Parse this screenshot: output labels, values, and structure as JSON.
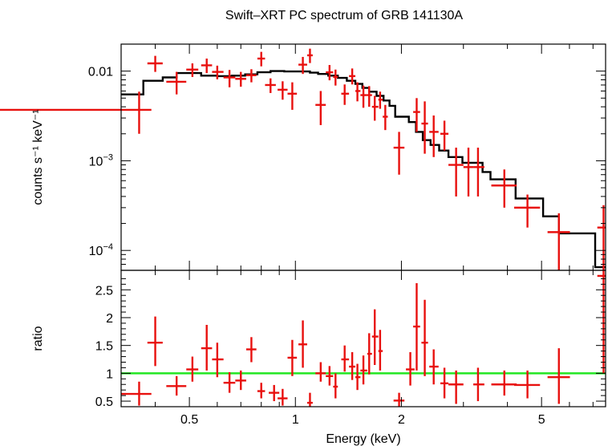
{
  "chart_data": [
    {
      "type": "scatter",
      "title": "Swift–XRT PC spectrum of GRB 141130A",
      "ylabel": "counts s⁻¹ keV⁻¹",
      "xscale": "log",
      "yscale": "log",
      "xlim": [
        0.32,
        7.6
      ],
      "ylim": [
        6e-05,
        0.02
      ],
      "yticks": [
        {
          "value": 0.01,
          "label": "0.01"
        },
        {
          "value": 0.001,
          "label": "10",
          "exp": "−3"
        },
        {
          "value": 0.0001,
          "label": "10",
          "exp": "−4"
        }
      ],
      "colors": {
        "data": "#e8100e",
        "model": "#000000"
      },
      "series": [
        {
          "kind": "data",
          "points": [
            [
              0.36,
              0.0037,
              0.031,
              0.39,
              0.002,
              0.0059
            ],
            [
              0.4,
              0.0122,
              0.38,
              0.42,
              0.0098,
              0.0148
            ],
            [
              0.46,
              0.0076,
              0.43,
              0.49,
              0.0055,
              0.0098
            ],
            [
              0.51,
              0.0104,
              0.49,
              0.53,
              0.0086,
              0.0122
            ],
            [
              0.56,
              0.0116,
              0.54,
              0.58,
              0.0095,
              0.0138
            ],
            [
              0.6,
              0.0098,
              0.58,
              0.625,
              0.0081,
              0.0115
            ],
            [
              0.65,
              0.0085,
              0.625,
              0.675,
              0.0066,
              0.0103
            ],
            [
              0.7,
              0.0082,
              0.675,
              0.725,
              0.0067,
              0.0098
            ],
            [
              0.75,
              0.009,
              0.725,
              0.775,
              0.0075,
              0.0105
            ],
            [
              0.8,
              0.0138,
              0.78,
              0.82,
              0.0113,
              0.0164
            ],
            [
              0.85,
              0.007,
              0.82,
              0.88,
              0.0057,
              0.0083
            ],
            [
              0.92,
              0.0062,
              0.89,
              0.95,
              0.0048,
              0.0077
            ],
            [
              0.98,
              0.0056,
              0.95,
              1.01,
              0.0037,
              0.0075
            ],
            [
              1.05,
              0.0118,
              1.02,
              1.08,
              0.0093,
              0.0144
            ],
            [
              1.1,
              0.015,
              1.08,
              1.12,
              0.0123,
              0.0178
            ],
            [
              1.18,
              0.0042,
              1.14,
              1.22,
              0.0025,
              0.006
            ],
            [
              1.25,
              0.0097,
              1.22,
              1.28,
              0.0079,
              0.0117
            ],
            [
              1.3,
              0.0086,
              1.28,
              1.32,
              0.0069,
              0.0104
            ],
            [
              1.38,
              0.0056,
              1.35,
              1.42,
              0.0042,
              0.0071
            ],
            [
              1.45,
              0.0088,
              1.42,
              1.48,
              0.0071,
              0.0107
            ],
            [
              1.5,
              0.006,
              1.48,
              1.53,
              0.0046,
              0.0075
            ],
            [
              1.56,
              0.0054,
              1.53,
              1.6,
              0.0039,
              0.0069
            ],
            [
              1.62,
              0.0054,
              1.6,
              1.65,
              0.004,
              0.0068
            ],
            [
              1.68,
              0.004,
              1.65,
              1.72,
              0.0028,
              0.0053
            ],
            [
              1.74,
              0.0048,
              1.72,
              1.77,
              0.0038,
              0.0059
            ],
            [
              1.8,
              0.0031,
              1.77,
              1.83,
              0.0022,
              0.0042
            ],
            [
              1.97,
              0.0014,
              1.9,
              2.04,
              0.0007,
              0.0021
            ],
            [
              2.21,
              0.0035,
              2.16,
              2.26,
              0.0021,
              0.005
            ],
            [
              2.33,
              0.0026,
              2.28,
              2.38,
              0.0012,
              0.0046
            ],
            [
              2.47,
              0.0021,
              2.4,
              2.55,
              0.0011,
              0.0032
            ],
            [
              2.65,
              0.002,
              2.58,
              2.72,
              0.0013,
              0.0028
            ],
            [
              2.86,
              0.0009,
              2.72,
              3.0,
              0.0004,
              0.0014
            ],
            [
              3.1,
              0.00085,
              3.0,
              3.2,
              0.0004,
              0.0014
            ],
            [
              3.3,
              0.00085,
              3.2,
              3.44,
              0.0004,
              0.0014
            ],
            [
              3.92,
              0.00053,
              3.6,
              4.25,
              0.0003,
              0.0008
            ],
            [
              4.56,
              0.0003,
              4.18,
              4.95,
              0.00018,
              0.00042
            ],
            [
              5.6,
              0.00016,
              5.2,
              6.02,
              6e-05,
              0.00026
            ],
            [
              7.5,
              0.00018,
              7.2,
              7.6,
              6e-05,
              0.00032
            ]
          ]
        },
        {
          "kind": "model",
          "steps": [
            [
              0.32,
              0.0055
            ],
            [
              0.37,
              0.0078
            ],
            [
              0.42,
              0.0085
            ],
            [
              0.46,
              0.0095
            ],
            [
              0.54,
              0.0089
            ],
            [
              0.6,
              0.0088
            ],
            [
              0.66,
              0.0089
            ],
            [
              0.72,
              0.0092
            ],
            [
              0.78,
              0.0097
            ],
            [
              0.85,
              0.01
            ],
            [
              0.93,
              0.0099
            ],
            [
              1.0,
              0.0099
            ],
            [
              1.1,
              0.0096
            ],
            [
              1.16,
              0.0093
            ],
            [
              1.24,
              0.0089
            ],
            [
              1.32,
              0.0084
            ],
            [
              1.4,
              0.0078
            ],
            [
              1.48,
              0.0072
            ],
            [
              1.55,
              0.0065
            ],
            [
              1.62,
              0.0059
            ],
            [
              1.7,
              0.0053
            ],
            [
              1.78,
              0.0047
            ],
            [
              1.85,
              0.0041
            ],
            [
              1.92,
              0.0031
            ],
            [
              2.1,
              0.0027
            ],
            [
              2.2,
              0.0021
            ],
            [
              2.3,
              0.0017
            ],
            [
              2.42,
              0.0015
            ],
            [
              2.56,
              0.0013
            ],
            [
              2.72,
              0.0011
            ],
            [
              2.98,
              0.00095
            ],
            [
              3.4,
              0.00075
            ],
            [
              3.58,
              0.00062
            ],
            [
              4.22,
              0.00038
            ],
            [
              5.05,
              0.00024
            ],
            [
              5.6,
              0.000155
            ],
            [
              7.1,
              6.5e-05
            ]
          ],
          "end": 7.6
        }
      ]
    },
    {
      "type": "scatter",
      "xlabel": "Energy (keV)",
      "ylabel": "ratio",
      "xscale": "log",
      "xlim": [
        0.32,
        7.6
      ],
      "ylim": [
        0.4,
        2.85
      ],
      "xticks": [
        {
          "value": 0.5,
          "label": "0.5"
        },
        {
          "value": 1,
          "label": "1"
        },
        {
          "value": 2,
          "label": "2"
        },
        {
          "value": 5,
          "label": "5"
        }
      ],
      "yticks": [
        {
          "value": 0.5,
          "label": "0.5"
        },
        {
          "value": 1,
          "label": "1"
        },
        {
          "value": 1.5,
          "label": "1.5"
        },
        {
          "value": 2,
          "label": "2"
        },
        {
          "value": 2.5,
          "label": "2.5"
        }
      ],
      "reference_line": {
        "value": 1,
        "color": "#22e622"
      },
      "series": [
        {
          "kind": "data",
          "points": [
            [
              0.36,
              0.63,
              0.32,
              0.39,
              0.42,
              0.85
            ],
            [
              0.4,
              1.55,
              0.38,
              0.42,
              1.13,
              2.02
            ],
            [
              0.46,
              0.77,
              0.43,
              0.49,
              0.6,
              0.95
            ],
            [
              0.51,
              1.07,
              0.49,
              0.53,
              0.85,
              1.3
            ],
            [
              0.56,
              1.45,
              0.54,
              0.58,
              1.05,
              1.87
            ],
            [
              0.6,
              1.25,
              0.58,
              0.625,
              0.93,
              1.55
            ],
            [
              0.65,
              0.83,
              0.625,
              0.675,
              0.65,
              1.02
            ],
            [
              0.7,
              0.87,
              0.675,
              0.725,
              0.7,
              1.05
            ],
            [
              0.75,
              1.43,
              0.725,
              0.775,
              1.2,
              1.65
            ],
            [
              0.8,
              0.68,
              0.78,
              0.82,
              0.55,
              0.83
            ],
            [
              0.87,
              0.65,
              0.84,
              0.9,
              0.5,
              0.79
            ],
            [
              0.92,
              0.55,
              0.89,
              0.95,
              0.42,
              0.72
            ],
            [
              0.98,
              1.28,
              0.95,
              1.01,
              0.95,
              1.6
            ],
            [
              1.05,
              1.52,
              1.02,
              1.08,
              1.1,
              1.95
            ],
            [
              1.1,
              0.47,
              1.08,
              1.12,
              0.4,
              0.65
            ],
            [
              1.18,
              1.0,
              1.14,
              1.22,
              0.85,
              1.2
            ],
            [
              1.25,
              0.95,
              1.22,
              1.28,
              0.78,
              1.13
            ],
            [
              1.3,
              0.76,
              1.28,
              1.32,
              0.55,
              1.0
            ],
            [
              1.38,
              1.25,
              1.35,
              1.42,
              1.03,
              1.5
            ],
            [
              1.45,
              1.12,
              1.42,
              1.48,
              0.88,
              1.38
            ],
            [
              1.5,
              0.93,
              1.48,
              1.53,
              0.7,
              1.17
            ],
            [
              1.56,
              1.05,
              1.53,
              1.6,
              0.8,
              1.32
            ],
            [
              1.62,
              1.35,
              1.6,
              1.65,
              0.98,
              1.72
            ],
            [
              1.68,
              1.66,
              1.65,
              1.72,
              1.15,
              2.15
            ],
            [
              1.74,
              1.4,
              1.72,
              1.77,
              1.05,
              1.78
            ],
            [
              1.97,
              0.51,
              1.9,
              2.04,
              0.4,
              0.65
            ],
            [
              2.12,
              1.07,
              2.06,
              2.18,
              0.78,
              1.38
            ],
            [
              2.21,
              1.84,
              2.16,
              2.26,
              1.05,
              2.62
            ],
            [
              2.33,
              1.55,
              2.28,
              2.38,
              0.95,
              2.32
            ],
            [
              2.47,
              1.12,
              2.4,
              2.55,
              0.8,
              1.43
            ],
            [
              2.65,
              0.82,
              2.58,
              2.72,
              0.55,
              1.1
            ],
            [
              2.86,
              0.8,
              2.72,
              3.0,
              0.45,
              1.05
            ],
            [
              3.3,
              0.8,
              3.2,
              3.44,
              0.5,
              1.1
            ],
            [
              3.92,
              0.8,
              3.6,
              4.25,
              0.6,
              1.05
            ],
            [
              4.56,
              0.79,
              4.18,
              4.95,
              0.55,
              1.05
            ],
            [
              5.6,
              0.93,
              5.2,
              6.02,
              0.45,
              1.45
            ],
            [
              7.5,
              2.75,
              7.2,
              7.6,
              1.0,
              2.85
            ]
          ]
        }
      ]
    }
  ]
}
